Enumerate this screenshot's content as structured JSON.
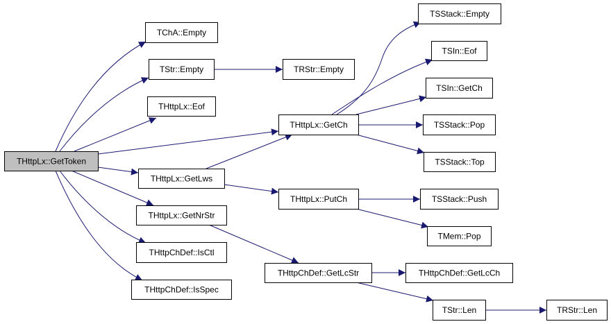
{
  "graph": {
    "edge_color": "#191970",
    "root_fill": "#bfbfbf",
    "nodes": [
      {
        "id": "gettoken",
        "label": "THttpLx::GetToken"
      },
      {
        "id": "tcha_empty",
        "label": "TChA::Empty"
      },
      {
        "id": "tstr_empty",
        "label": "TStr::Empty"
      },
      {
        "id": "httplx_eof",
        "label": "THttpLx::Eof"
      },
      {
        "id": "getlws",
        "label": "THttpLx::GetLws"
      },
      {
        "id": "getnrstr",
        "label": "THttpLx::GetNrStr"
      },
      {
        "id": "isctl",
        "label": "THttpChDef::IsCtl"
      },
      {
        "id": "isspec",
        "label": "THttpChDef::IsSpec"
      },
      {
        "id": "trstr_empty",
        "label": "TRStr::Empty"
      },
      {
        "id": "getch",
        "label": "THttpLx::GetCh"
      },
      {
        "id": "putch",
        "label": "THttpLx::PutCh"
      },
      {
        "id": "getlcstr",
        "label": "THttpChDef::GetLcStr"
      },
      {
        "id": "tsstack_empty",
        "label": "TSStack::Empty"
      },
      {
        "id": "tsin_eof",
        "label": "TSIn::Eof"
      },
      {
        "id": "tsin_getch",
        "label": "TSIn::GetCh"
      },
      {
        "id": "tsstack_pop",
        "label": "TSStack::Pop"
      },
      {
        "id": "tsstack_top",
        "label": "TSStack::Top"
      },
      {
        "id": "tsstack_push",
        "label": "TSStack::Push"
      },
      {
        "id": "tmem_pop",
        "label": "TMem::Pop"
      },
      {
        "id": "getlcch",
        "label": "THttpChDef::GetLcCh"
      },
      {
        "id": "tstr_len",
        "label": "TStr::Len"
      },
      {
        "id": "trstr_len",
        "label": "TRStr::Len"
      }
    ],
    "edges": [
      {
        "from": "gettoken",
        "to": "tcha_empty"
      },
      {
        "from": "gettoken",
        "to": "tstr_empty"
      },
      {
        "from": "gettoken",
        "to": "httplx_eof"
      },
      {
        "from": "gettoken",
        "to": "getch"
      },
      {
        "from": "gettoken",
        "to": "getlws"
      },
      {
        "from": "gettoken",
        "to": "getnrstr"
      },
      {
        "from": "gettoken",
        "to": "isctl"
      },
      {
        "from": "gettoken",
        "to": "isspec"
      },
      {
        "from": "tstr_empty",
        "to": "trstr_empty"
      },
      {
        "from": "getlws",
        "to": "getch"
      },
      {
        "from": "getlws",
        "to": "putch"
      },
      {
        "from": "getnrstr",
        "to": "getlcstr"
      },
      {
        "from": "getch",
        "to": "tsstack_empty"
      },
      {
        "from": "getch",
        "to": "tsin_eof"
      },
      {
        "from": "getch",
        "to": "tsin_getch"
      },
      {
        "from": "getch",
        "to": "tsstack_pop"
      },
      {
        "from": "getch",
        "to": "tsstack_top"
      },
      {
        "from": "putch",
        "to": "tsstack_push"
      },
      {
        "from": "putch",
        "to": "tmem_pop"
      },
      {
        "from": "getlcstr",
        "to": "getlcch"
      },
      {
        "from": "getlcstr",
        "to": "tstr_len"
      },
      {
        "from": "tstr_len",
        "to": "trstr_len"
      }
    ]
  }
}
